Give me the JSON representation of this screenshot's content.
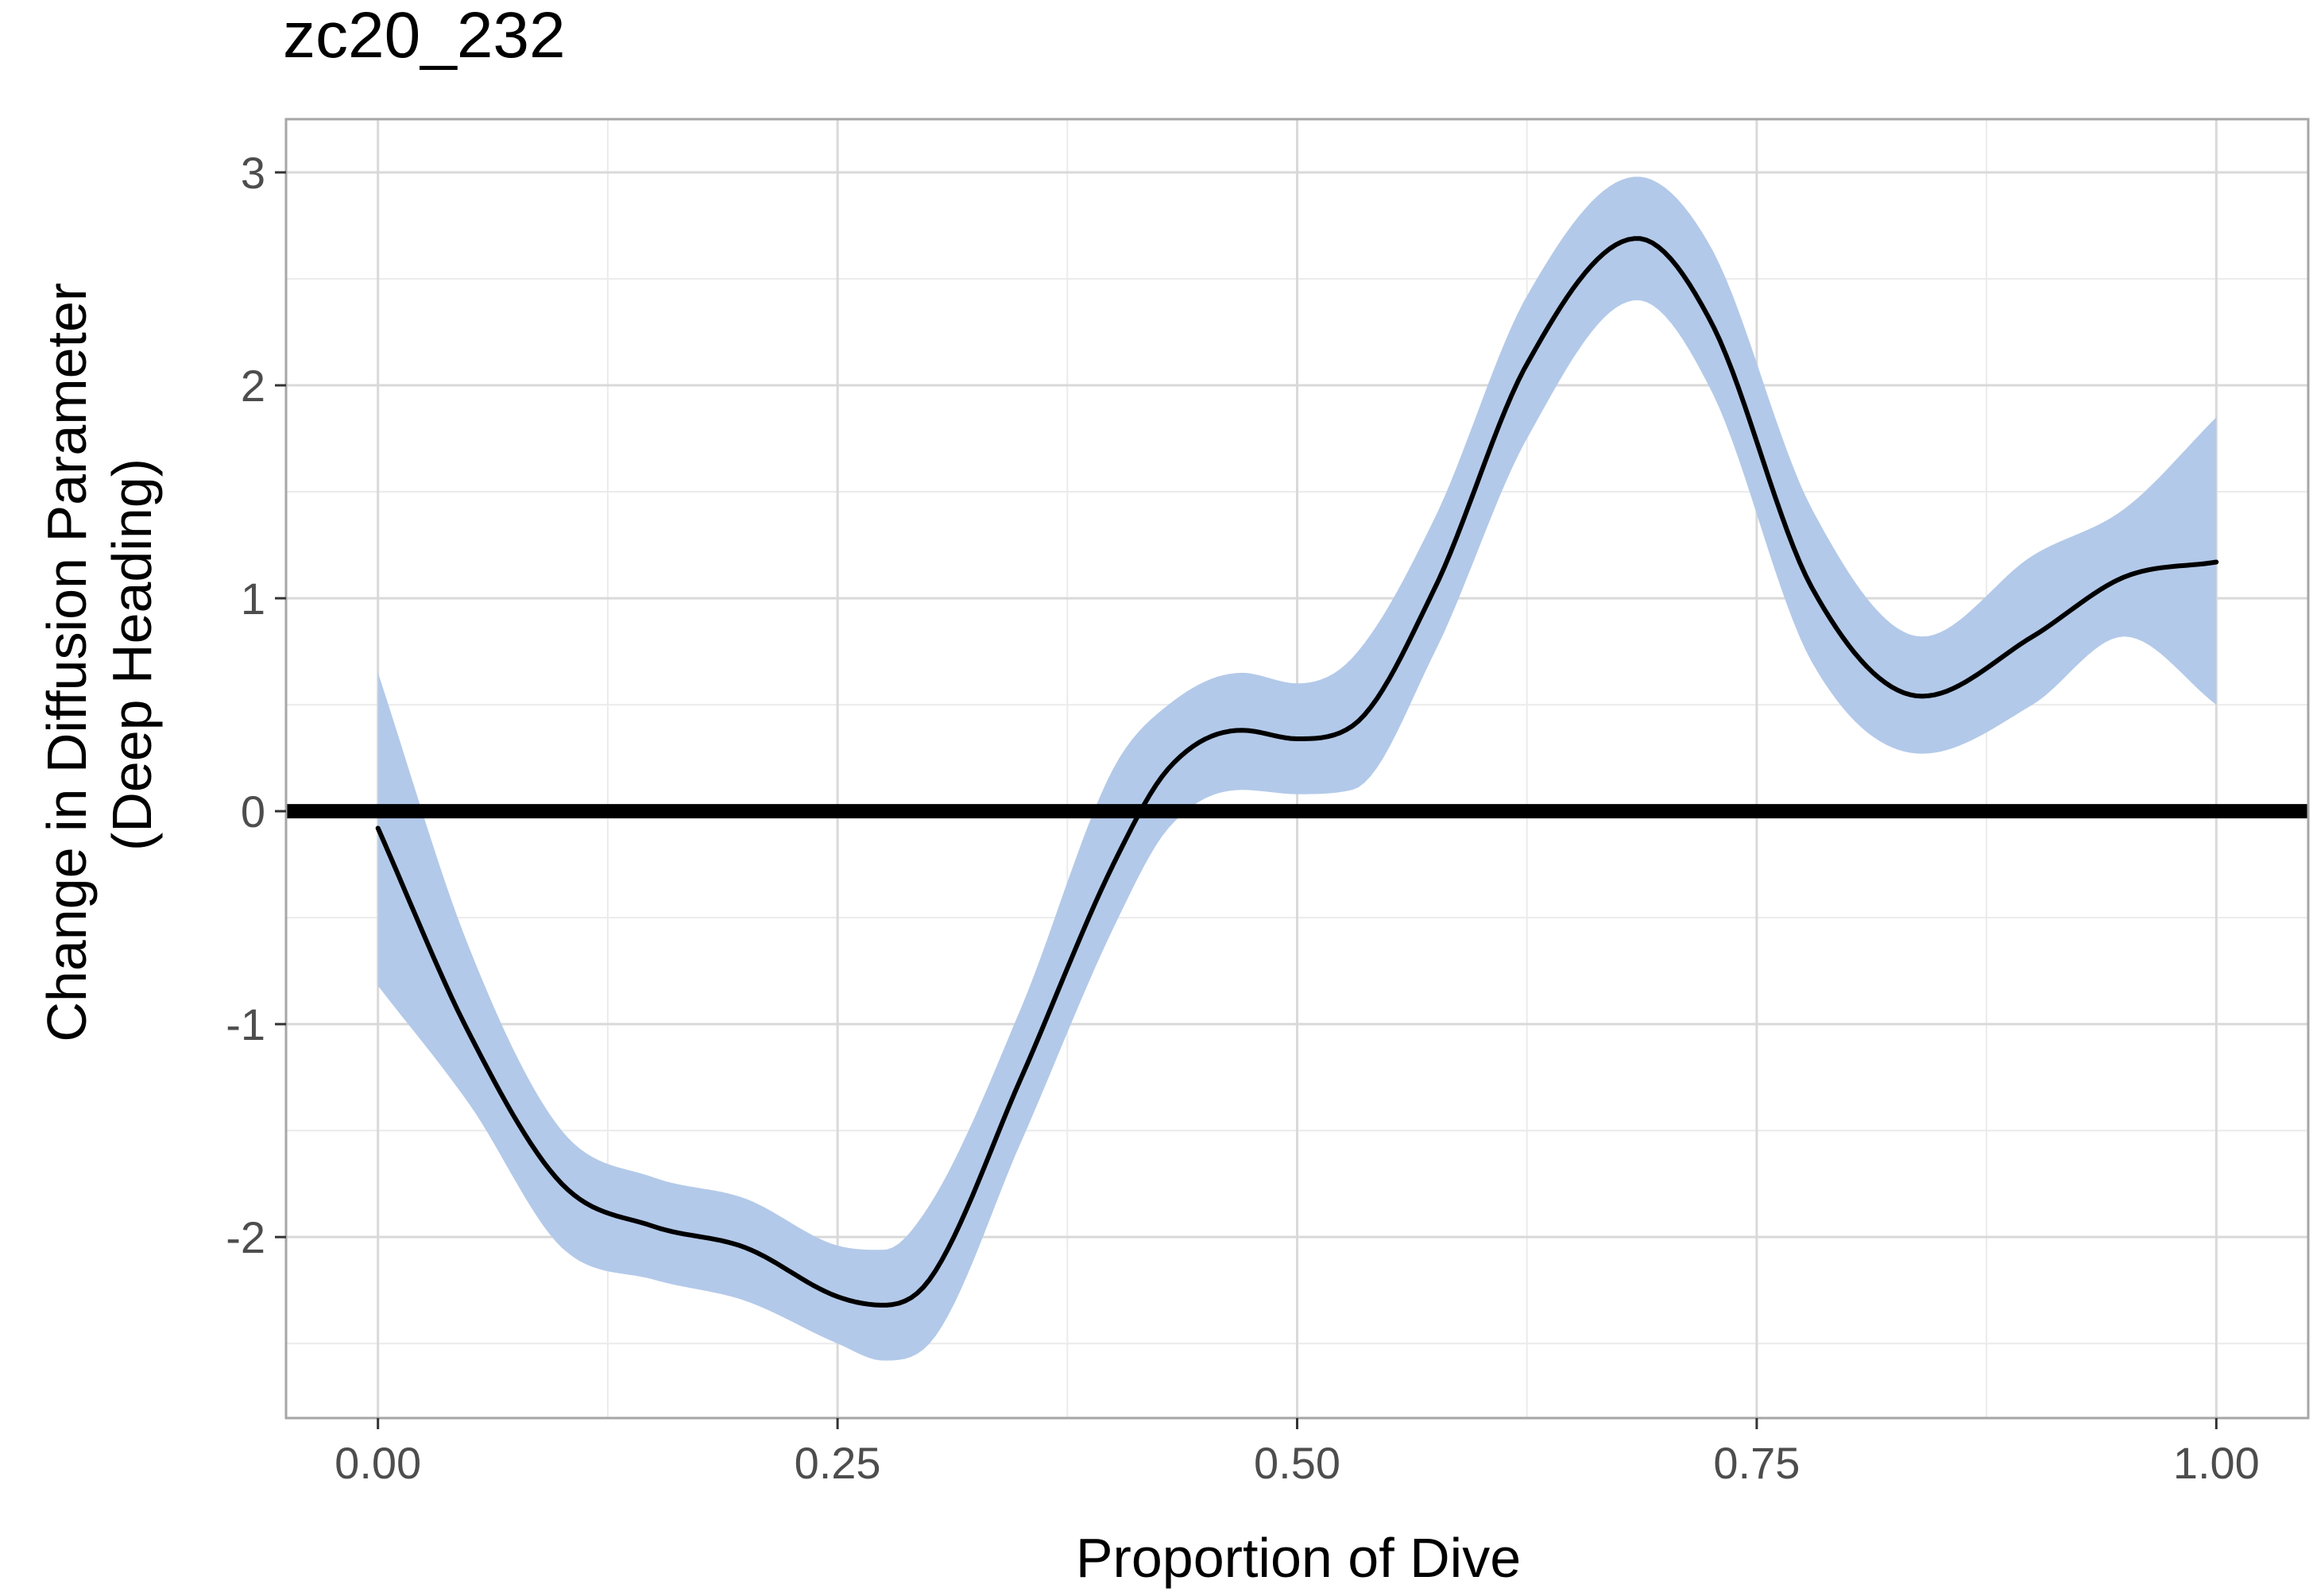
{
  "chart_data": {
    "type": "line",
    "title": "zc20_232",
    "xlabel": "Proportion of Dive",
    "ylabel_lines": [
      "Change in Diffusion Parameter",
      "(Deep Heading)"
    ],
    "xlim": [
      -0.05,
      1.05
    ],
    "ylim": [
      -2.85,
      3.25
    ],
    "x_ticks": [
      0.0,
      0.25,
      0.5,
      0.75,
      1.0
    ],
    "x_tick_labels": [
      "0.00",
      "0.25",
      "0.50",
      "0.75",
      "1.00"
    ],
    "y_ticks": [
      -2,
      -1,
      0,
      1,
      2,
      3
    ],
    "y_tick_labels": [
      "-2",
      "-1",
      "0",
      "1",
      "2",
      "3"
    ],
    "grid": true,
    "reference_line_y": 0,
    "series": [
      {
        "x": [
          0.0,
          0.05,
          0.1,
          0.15,
          0.2,
          0.25,
          0.275,
          0.3,
          0.35,
          0.4,
          0.43,
          0.47,
          0.5,
          0.53,
          0.575,
          0.625,
          0.685,
          0.725,
          0.78,
          0.84,
          0.9,
          0.95,
          1.0
        ],
        "y": [
          -0.08,
          -1.05,
          -1.75,
          -1.95,
          -2.05,
          -2.28,
          -2.32,
          -2.2,
          -1.25,
          -0.25,
          0.2,
          0.38,
          0.34,
          0.4,
          1.05,
          2.1,
          2.69,
          2.3,
          1.05,
          0.54,
          0.82,
          1.1,
          1.17
        ],
        "lower": [
          -0.82,
          -1.38,
          -2.05,
          -2.2,
          -2.3,
          -2.5,
          -2.58,
          -2.5,
          -1.55,
          -0.55,
          -0.08,
          0.1,
          0.08,
          0.1,
          0.75,
          1.75,
          2.4,
          1.98,
          0.7,
          0.27,
          0.5,
          0.82,
          0.5
        ],
        "upper": [
          0.65,
          -0.65,
          -1.5,
          -1.72,
          -1.82,
          -2.04,
          -2.06,
          -1.85,
          -0.92,
          0.2,
          0.5,
          0.65,
          0.6,
          0.72,
          1.38,
          2.42,
          2.98,
          2.65,
          1.42,
          0.82,
          1.2,
          1.42,
          1.85
        ]
      }
    ],
    "colors": {
      "line": "#000000",
      "ribbon": "#b3c9e9",
      "grid_major": "#d9d9d9",
      "grid_minor": "#ebebeb",
      "panel_border": "#a6a6a6",
      "tick_text": "#4d4d4d"
    }
  }
}
